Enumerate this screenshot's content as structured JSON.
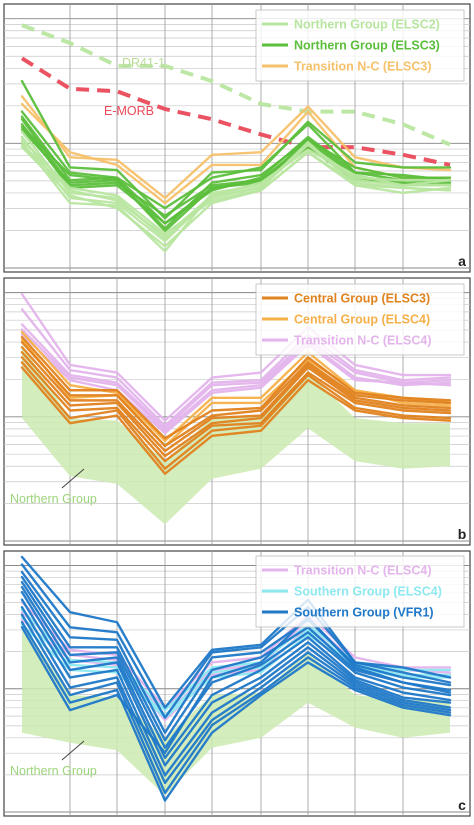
{
  "chart_data": [
    {
      "type": "line",
      "panel_label": "a",
      "legend": [
        "Northern Group (ELSC2)",
        "Northern Group (ELSC3)",
        "Transition N-C (ELSC3)"
      ],
      "annotations": [
        "DR41-1",
        "E-MORB"
      ],
      "colors": {
        "northern_elsc2": "#b8e6a0",
        "northern_elsc3": "#5cbf3c",
        "transition_nc_elsc3": "#f5c16a",
        "dr41_1": "#b8e6a0",
        "e_morb": "#ea4a5a"
      },
      "series": [
        {
          "name": "DR41-1",
          "style": "dashed",
          "values": [
            0.94,
            0.87,
            0.78,
            0.78,
            0.72,
            0.63,
            0.6,
            0.6,
            0.55,
            0.47
          ]
        },
        {
          "name": "E-MORB",
          "style": "dashed",
          "values": [
            0.81,
            0.69,
            0.68,
            0.61,
            0.57,
            0.51,
            0.46,
            0.46,
            0.43,
            0.39
          ]
        },
        {
          "name": "Transition N-C (ELSC3)",
          "values": [
            0.66,
            0.42,
            0.41,
            0.26,
            0.43,
            0.44,
            0.62,
            0.42,
            0.38,
            0.37
          ]
        },
        {
          "name": "Transition N-C (ELSC3)",
          "values": [
            0.63,
            0.44,
            0.39,
            0.24,
            0.39,
            0.39,
            0.6,
            0.38,
            0.34,
            0.34
          ]
        },
        {
          "name": "Northern Group (ELSC3)",
          "values": [
            0.72,
            0.38,
            0.37,
            0.18,
            0.36,
            0.37,
            0.56,
            0.4,
            0.38,
            0.38
          ]
        },
        {
          "name": "Northern Group (ELSC3)",
          "values": [
            0.6,
            0.36,
            0.34,
            0.22,
            0.34,
            0.38,
            0.55,
            0.36,
            0.33,
            0.33
          ]
        },
        {
          "name": "Northern Group (ELSC3)",
          "values": [
            0.58,
            0.33,
            0.34,
            0.16,
            0.29,
            0.34,
            0.5,
            0.36,
            0.35,
            0.33
          ]
        },
        {
          "name": "Northern Group (ELSC3)",
          "values": [
            0.54,
            0.35,
            0.33,
            0.14,
            0.32,
            0.35,
            0.49,
            0.38,
            0.34,
            0.34
          ]
        },
        {
          "name": "Northern Group (ELSC3)",
          "values": [
            0.57,
            0.31,
            0.32,
            0.19,
            0.31,
            0.33,
            0.48,
            0.34,
            0.33,
            0.32
          ]
        },
        {
          "name": "Northern Group (ELSC3)",
          "values": [
            0.55,
            0.3,
            0.31,
            0.16,
            0.3,
            0.32,
            0.49,
            0.35,
            0.31,
            0.31
          ]
        },
        {
          "name": "Northern Group (ELSC3)",
          "values": [
            0.53,
            0.32,
            0.33,
            0.13,
            0.3,
            0.33,
            0.46,
            0.33,
            0.32,
            0.31
          ]
        },
        {
          "name": "Northern Group (ELSC2)",
          "values": [
            0.52,
            0.28,
            0.26,
            0.1,
            0.26,
            0.3,
            0.47,
            0.34,
            0.33,
            0.33
          ]
        },
        {
          "name": "Northern Group (ELSC2)",
          "values": [
            0.5,
            0.26,
            0.24,
            0.09,
            0.27,
            0.32,
            0.45,
            0.35,
            0.31,
            0.31
          ]
        },
        {
          "name": "Northern Group (ELSC2)",
          "values": [
            0.49,
            0.3,
            0.27,
            0.12,
            0.25,
            0.29,
            0.44,
            0.32,
            0.3,
            0.29
          ]
        },
        {
          "name": "Northern Group (ELSC2)",
          "values": [
            0.48,
            0.24,
            0.23,
            0.05,
            0.28,
            0.31,
            0.47,
            0.33,
            0.31,
            0.33
          ]
        },
        {
          "name": "Northern Group (ELSC2)",
          "values": [
            0.47,
            0.29,
            0.25,
            0.11,
            0.27,
            0.3,
            0.48,
            0.31,
            0.3,
            0.29
          ]
        },
        {
          "name": "Northern Group (ELSC2)",
          "values": [
            0.46,
            0.27,
            0.22,
            0.07,
            0.24,
            0.29,
            0.44,
            0.31,
            0.28,
            0.3
          ]
        }
      ]
    },
    {
      "type": "line",
      "panel_label": "b",
      "legend": [
        "Central Group (ELSC3)",
        "Central Group (ELSC4)",
        "Transition N-C (ELSC4)"
      ],
      "annotations": [
        "Northern Group"
      ],
      "colors": {
        "central_elsc3": "#e0821e",
        "central_elsc4": "#f5b04a",
        "transition_nc_elsc4": "#e4b4ec",
        "northern_envelope": "#cdeab0"
      },
      "envelope": {
        "name": "Northern Group",
        "upper": [
          0.76,
          0.47,
          0.46,
          0.3,
          0.47,
          0.48,
          0.65,
          0.47,
          0.45,
          0.45
        ],
        "lower": [
          0.47,
          0.24,
          0.21,
          0.05,
          0.23,
          0.27,
          0.43,
          0.3,
          0.27,
          0.28
        ]
      },
      "series": [
        {
          "name": "Transition N-C (ELSC4)",
          "values": [
            0.96,
            0.68,
            0.65,
            0.46,
            0.63,
            0.65,
            0.83,
            0.68,
            0.64,
            0.64
          ]
        },
        {
          "name": "Transition N-C (ELSC4)",
          "values": [
            0.9,
            0.66,
            0.63,
            0.44,
            0.61,
            0.62,
            0.8,
            0.66,
            0.62,
            0.63
          ]
        },
        {
          "name": "Transition N-C (ELSC4)",
          "values": [
            0.84,
            0.64,
            0.61,
            0.43,
            0.6,
            0.61,
            0.78,
            0.65,
            0.61,
            0.6
          ]
        },
        {
          "name": "Transition N-C (ELSC4)",
          "values": [
            0.82,
            0.63,
            0.6,
            0.42,
            0.58,
            0.6,
            0.77,
            0.63,
            0.6,
            0.61
          ]
        },
        {
          "name": "Transition N-C (ELSC4)",
          "values": [
            0.8,
            0.62,
            0.58,
            0.41,
            0.57,
            0.59,
            0.76,
            0.62,
            0.61,
            0.62
          ]
        },
        {
          "name": "Central Group (ELSC4)",
          "values": [
            0.81,
            0.6,
            0.57,
            0.38,
            0.55,
            0.55,
            0.73,
            0.58,
            0.53,
            0.52
          ]
        },
        {
          "name": "Central Group (ELSC4)",
          "values": [
            0.78,
            0.55,
            0.56,
            0.36,
            0.53,
            0.53,
            0.7,
            0.58,
            0.55,
            0.53
          ]
        },
        {
          "name": "Central Group (ELSC3)",
          "values": [
            0.79,
            0.58,
            0.58,
            0.39,
            0.5,
            0.51,
            0.71,
            0.57,
            0.55,
            0.54
          ]
        },
        {
          "name": "Central Group (ELSC3)",
          "values": [
            0.77,
            0.56,
            0.56,
            0.36,
            0.48,
            0.5,
            0.69,
            0.56,
            0.54,
            0.53
          ]
        },
        {
          "name": "Central Group (ELSC3)",
          "values": [
            0.75,
            0.54,
            0.54,
            0.34,
            0.47,
            0.48,
            0.68,
            0.55,
            0.52,
            0.51
          ]
        },
        {
          "name": "Central Group (ELSC3)",
          "values": [
            0.73,
            0.52,
            0.53,
            0.32,
            0.45,
            0.47,
            0.67,
            0.54,
            0.51,
            0.5
          ]
        },
        {
          "name": "Central Group (ELSC3)",
          "values": [
            0.71,
            0.5,
            0.51,
            0.3,
            0.44,
            0.45,
            0.65,
            0.53,
            0.5,
            0.49
          ]
        },
        {
          "name": "Central Group (ELSC3)",
          "values": [
            0.69,
            0.47,
            0.5,
            0.27,
            0.42,
            0.44,
            0.64,
            0.51,
            0.48,
            0.47
          ]
        },
        {
          "name": "Central Group (ELSC3)",
          "values": [
            0.67,
            0.45,
            0.48,
            0.25,
            0.4,
            0.42,
            0.62,
            0.5,
            0.47,
            0.46
          ]
        }
      ]
    },
    {
      "type": "line",
      "panel_label": "c",
      "legend": [
        "Transition N-C (ELSC4)",
        "Southern Group (ELSC4)",
        "Southern Group (VFR1)"
      ],
      "annotations": [
        "Northern Group"
      ],
      "colors": {
        "transition_nc_elsc4": "#e4b4ec",
        "southern_elsc4": "#8de8f0",
        "southern_vfr1": "#1f78c8",
        "northern_envelope": "#cdeab0"
      },
      "envelope": {
        "name": "Northern Group",
        "upper": [
          0.74,
          0.45,
          0.44,
          0.28,
          0.45,
          0.46,
          0.62,
          0.45,
          0.43,
          0.43
        ],
        "lower": [
          0.3,
          0.26,
          0.23,
          0.05,
          0.24,
          0.28,
          0.42,
          0.32,
          0.28,
          0.3
        ]
      },
      "series": [
        {
          "name": "Transition N-C (ELSC4)",
          "values": [
            0.82,
            0.63,
            0.61,
            0.4,
            0.58,
            0.6,
            0.77,
            0.6,
            0.56,
            0.56
          ]
        },
        {
          "name": "Transition N-C (ELSC4)",
          "values": [
            0.78,
            0.61,
            0.59,
            0.37,
            0.55,
            0.57,
            0.75,
            0.58,
            0.55,
            0.54
          ]
        },
        {
          "name": "Transition N-C (ELSC4)",
          "values": [
            0.75,
            0.59,
            0.57,
            0.35,
            0.53,
            0.55,
            0.72,
            0.56,
            0.53,
            0.53
          ]
        },
        {
          "name": "Southern Group (ELSC4)",
          "values": [
            0.79,
            0.59,
            0.58,
            0.39,
            0.56,
            0.58,
            0.73,
            0.58,
            0.55,
            0.55
          ]
        },
        {
          "name": "Southern Group (ELSC4)",
          "values": [
            0.76,
            0.57,
            0.56,
            0.37,
            0.54,
            0.56,
            0.71,
            0.57,
            0.53,
            0.53
          ]
        },
        {
          "name": "Southern Group (ELSC4)",
          "values": [
            0.73,
            0.55,
            0.54,
            0.36,
            0.52,
            0.54,
            0.69,
            0.56,
            0.52,
            0.52
          ]
        },
        {
          "name": "Southern Group (VFR1)",
          "values": [
            1.0,
            0.78,
            0.74,
            0.4,
            0.63,
            0.65,
            0.83,
            0.58,
            0.56,
            0.52
          ]
        },
        {
          "name": "Southern Group (VFR1)",
          "values": [
            0.97,
            0.72,
            0.7,
            0.36,
            0.62,
            0.64,
            0.8,
            0.58,
            0.54,
            0.5
          ]
        },
        {
          "name": "Southern Group (VFR1)",
          "values": [
            0.94,
            0.68,
            0.67,
            0.3,
            0.6,
            0.62,
            0.75,
            0.57,
            0.52,
            0.49
          ]
        },
        {
          "name": "Southern Group (VFR1)",
          "values": [
            0.92,
            0.64,
            0.64,
            0.27,
            0.55,
            0.6,
            0.72,
            0.55,
            0.5,
            0.47
          ]
        },
        {
          "name": "Southern Group (VFR1)",
          "values": [
            0.9,
            0.61,
            0.62,
            0.24,
            0.5,
            0.57,
            0.7,
            0.54,
            0.48,
            0.45
          ]
        },
        {
          "name": "Southern Group (VFR1)",
          "values": [
            0.88,
            0.58,
            0.6,
            0.2,
            0.45,
            0.55,
            0.68,
            0.52,
            0.46,
            0.43
          ]
        },
        {
          "name": "Southern Group (VFR1)",
          "values": [
            0.86,
            0.55,
            0.58,
            0.17,
            0.42,
            0.52,
            0.66,
            0.51,
            0.44,
            0.42
          ]
        },
        {
          "name": "Southern Group (VFR1)",
          "values": [
            0.83,
            0.52,
            0.55,
            0.13,
            0.38,
            0.5,
            0.64,
            0.5,
            0.43,
            0.4
          ]
        },
        {
          "name": "Southern Group (VFR1)",
          "values": [
            0.8,
            0.48,
            0.52,
            0.1,
            0.35,
            0.48,
            0.62,
            0.49,
            0.42,
            0.39
          ]
        },
        {
          "name": "Southern Group (VFR1)",
          "values": [
            0.77,
            0.45,
            0.5,
            0.06,
            0.33,
            0.46,
            0.6,
            0.48,
            0.41,
            0.38
          ]
        },
        {
          "name": "Southern Group (VFR1)",
          "values": [
            0.74,
            0.42,
            0.47,
            0.03,
            0.3,
            0.45,
            0.58,
            0.47,
            0.4,
            0.37
          ]
        },
        {
          "name": "Southern Group (VFR1)",
          "values": [
            0.72,
            0.39,
            0.45,
            0.22,
            0.52,
            0.58,
            0.76,
            0.56,
            0.5,
            0.46
          ]
        }
      ]
    }
  ]
}
